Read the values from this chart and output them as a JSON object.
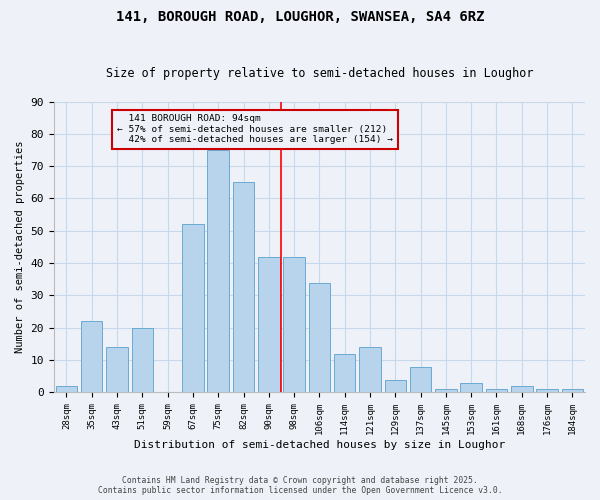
{
  "title": "141, BOROUGH ROAD, LOUGHOR, SWANSEA, SA4 6RZ",
  "subtitle": "Size of property relative to semi-detached houses in Loughor",
  "xlabel": "Distribution of semi-detached houses by size in Loughor",
  "ylabel": "Number of semi-detached properties",
  "categories": [
    "28sqm",
    "35sqm",
    "43sqm",
    "51sqm",
    "59sqm",
    "67sqm",
    "75sqm",
    "82sqm",
    "90sqm",
    "98sqm",
    "106sqm",
    "114sqm",
    "121sqm",
    "129sqm",
    "137sqm",
    "145sqm",
    "153sqm",
    "161sqm",
    "168sqm",
    "176sqm",
    "184sqm"
  ],
  "values": [
    2,
    22,
    14,
    20,
    0,
    52,
    75,
    65,
    42,
    42,
    34,
    12,
    14,
    4,
    8,
    1,
    3,
    1,
    2,
    1,
    1
  ],
  "bar_color": "#b8d4ec",
  "bar_edge_color": "#6aaad4",
  "grid_color": "#c8d8ec",
  "background_color": "#eef2f8",
  "property_label": "141 BOROUGH ROAD: 94sqm",
  "pct_smaller": 57,
  "pct_smaller_count": 212,
  "pct_larger": 42,
  "pct_larger_count": 154,
  "vline_bar_index": 8,
  "annotation_box_color": "#cc0000",
  "ylim": [
    0,
    90
  ],
  "yticks": [
    0,
    10,
    20,
    30,
    40,
    50,
    60,
    70,
    80,
    90
  ],
  "footer1": "Contains HM Land Registry data © Crown copyright and database right 2025.",
  "footer2": "Contains public sector information licensed under the Open Government Licence v3.0."
}
